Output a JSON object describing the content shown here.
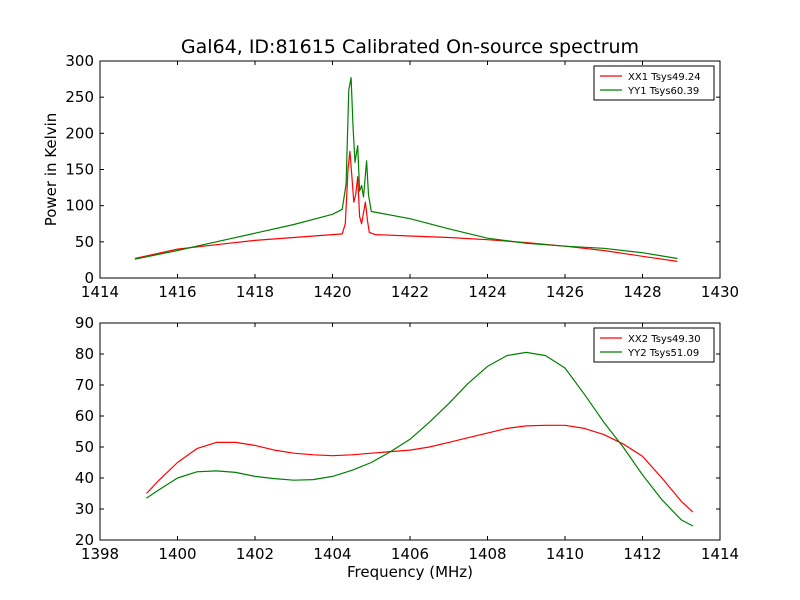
{
  "figure": {
    "title": "Gal64, ID:81615 Calibrated On-source spectrum"
  },
  "chart_data": [
    {
      "type": "line",
      "title": "Gal64, ID:81615 Calibrated On-source spectrum",
      "xlabel": "",
      "ylabel": "Power in Kelvin",
      "xlim": [
        1414,
        1430
      ],
      "ylim": [
        0,
        300
      ],
      "xticks": [
        1414,
        1416,
        1418,
        1420,
        1422,
        1424,
        1426,
        1428,
        1430
      ],
      "yticks": [
        0,
        50,
        100,
        150,
        200,
        250,
        300
      ],
      "grid": false,
      "legend": "top-right",
      "series": [
        {
          "name": "XX1 Tsys49.24",
          "color": "#ff0000",
          "points": [
            [
              1414.9,
              27
            ],
            [
              1416,
              40
            ],
            [
              1417,
              46
            ],
            [
              1418,
              52
            ],
            [
              1419,
              56
            ],
            [
              1420,
              60
            ],
            [
              1420.25,
              61
            ],
            [
              1420.33,
              75
            ],
            [
              1420.4,
              150
            ],
            [
              1420.45,
              175
            ],
            [
              1420.5,
              140
            ],
            [
              1420.55,
              105
            ],
            [
              1420.6,
              115
            ],
            [
              1420.65,
              140
            ],
            [
              1420.7,
              85
            ],
            [
              1420.75,
              75
            ],
            [
              1420.8,
              90
            ],
            [
              1420.85,
              105
            ],
            [
              1420.9,
              80
            ],
            [
              1420.95,
              63
            ],
            [
              1421.1,
              60
            ],
            [
              1422,
              58
            ],
            [
              1423,
              56
            ],
            [
              1424,
              53
            ],
            [
              1425,
              49
            ],
            [
              1426,
              44
            ],
            [
              1427,
              38
            ],
            [
              1428,
              30
            ],
            [
              1428.9,
              23
            ]
          ]
        },
        {
          "name": "YY1 Tsys60.39",
          "color": "#008000",
          "points": [
            [
              1414.9,
              26
            ],
            [
              1416,
              38
            ],
            [
              1417,
              50
            ],
            [
              1418,
              62
            ],
            [
              1419,
              74
            ],
            [
              1420,
              88
            ],
            [
              1420.25,
              95
            ],
            [
              1420.35,
              130
            ],
            [
              1420.42,
              260
            ],
            [
              1420.48,
              277
            ],
            [
              1420.53,
              210
            ],
            [
              1420.58,
              160
            ],
            [
              1420.65,
              183
            ],
            [
              1420.7,
              120
            ],
            [
              1420.75,
              128
            ],
            [
              1420.8,
              112
            ],
            [
              1420.88,
              162
            ],
            [
              1420.93,
              115
            ],
            [
              1421.0,
              92
            ],
            [
              1421.2,
              90
            ],
            [
              1422,
              82
            ],
            [
              1423,
              68
            ],
            [
              1424,
              55
            ],
            [
              1425,
              48
            ],
            [
              1426,
              44
            ],
            [
              1427,
              41
            ],
            [
              1428,
              35
            ],
            [
              1428.9,
              27
            ]
          ]
        }
      ]
    },
    {
      "type": "line",
      "title": "",
      "xlabel": "Frequency (MHz)",
      "ylabel": "",
      "xlim": [
        1398,
        1414
      ],
      "ylim": [
        20,
        90
      ],
      "xticks": [
        1398,
        1400,
        1402,
        1404,
        1406,
        1408,
        1410,
        1412,
        1414
      ],
      "yticks": [
        20,
        30,
        40,
        50,
        60,
        70,
        80,
        90
      ],
      "grid": false,
      "legend": "top-right",
      "series": [
        {
          "name": "XX2 Tsys49.30",
          "color": "#ff0000",
          "points": [
            [
              1399.2,
              35
            ],
            [
              1399.5,
              39
            ],
            [
              1400,
              45
            ],
            [
              1400.5,
              49.5
            ],
            [
              1401,
              51.5
            ],
            [
              1401.5,
              51.5
            ],
            [
              1402,
              50.5
            ],
            [
              1402.5,
              49
            ],
            [
              1403,
              48
            ],
            [
              1403.5,
              47.5
            ],
            [
              1404,
              47.2
            ],
            [
              1404.5,
              47.5
            ],
            [
              1405,
              48
            ],
            [
              1405.5,
              48.5
            ],
            [
              1406,
              49
            ],
            [
              1406.5,
              50
            ],
            [
              1407,
              51.5
            ],
            [
              1407.5,
              53
            ],
            [
              1408,
              54.5
            ],
            [
              1408.5,
              56
            ],
            [
              1409,
              56.8
            ],
            [
              1409.5,
              57
            ],
            [
              1410,
              57
            ],
            [
              1410.5,
              56
            ],
            [
              1411,
              54
            ],
            [
              1411.5,
              51
            ],
            [
              1412,
              47
            ],
            [
              1412.5,
              40
            ],
            [
              1413,
              32.5
            ],
            [
              1413.3,
              29
            ]
          ]
        },
        {
          "name": "YY2 Tsys51.09",
          "color": "#008000",
          "points": [
            [
              1399.2,
              33.5
            ],
            [
              1399.5,
              36
            ],
            [
              1400,
              40
            ],
            [
              1400.5,
              42
            ],
            [
              1401,
              42.3
            ],
            [
              1401.5,
              41.8
            ],
            [
              1402,
              40.5
            ],
            [
              1402.5,
              39.8
            ],
            [
              1403,
              39.3
            ],
            [
              1403.5,
              39.5
            ],
            [
              1404,
              40.5
            ],
            [
              1404.5,
              42.5
            ],
            [
              1405,
              45
            ],
            [
              1405.5,
              48.5
            ],
            [
              1406,
              52.5
            ],
            [
              1406.5,
              58
            ],
            [
              1407,
              64
            ],
            [
              1407.5,
              70.5
            ],
            [
              1408,
              76
            ],
            [
              1408.5,
              79.5
            ],
            [
              1409,
              80.5
            ],
            [
              1409.5,
              79.5
            ],
            [
              1410,
              75.5
            ],
            [
              1410.5,
              67
            ],
            [
              1411,
              58
            ],
            [
              1411.5,
              50
            ],
            [
              1412,
              41
            ],
            [
              1412.5,
              33
            ],
            [
              1413,
              26.5
            ],
            [
              1413.3,
              24.5
            ]
          ]
        }
      ]
    }
  ]
}
